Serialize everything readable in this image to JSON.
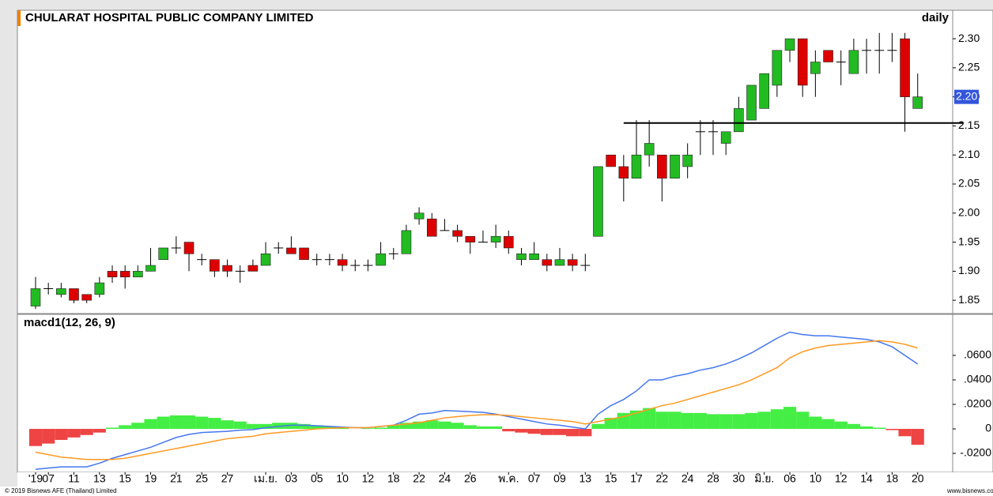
{
  "chart_data": [
    {
      "type": "candlestick",
      "title": "CHULARAT HOSPITAL PUBLIC COMPANY LIMITED",
      "subtitle": "daily",
      "categories": [
        "'19",
        "07",
        null,
        "11",
        null,
        "13",
        null,
        "15",
        null,
        "19",
        null,
        "21",
        null,
        "25",
        null,
        "27",
        null,
        null,
        "เม.ย.",
        null,
        "03",
        null,
        "05",
        null,
        "10",
        null,
        "12",
        null,
        "18",
        null,
        "22",
        null,
        "24",
        null,
        "26",
        null,
        null,
        "พ.ค.",
        null,
        "07",
        null,
        "09",
        null,
        "13",
        null,
        "15",
        null,
        "17",
        null,
        "22",
        null,
        "24",
        null,
        "28",
        null,
        "30",
        null,
        "มิ.ย.",
        null,
        "06",
        null,
        "10",
        null,
        "12",
        null,
        "14",
        null,
        "18",
        null,
        "20"
      ],
      "open": [
        1.84,
        1.87,
        1.86,
        1.87,
        1.86,
        1.86,
        1.9,
        1.9,
        1.89,
        1.9,
        1.92,
        1.94,
        1.95,
        1.92,
        1.92,
        1.91,
        1.9,
        1.91,
        1.91,
        1.94,
        1.94,
        1.94,
        1.92,
        1.92,
        1.92,
        1.91,
        1.91,
        1.91,
        1.93,
        1.93,
        1.99,
        1.99,
        1.97,
        1.97,
        1.96,
        1.95,
        1.95,
        1.96,
        1.92,
        1.92,
        1.92,
        1.91,
        1.92,
        1.91,
        1.96,
        2.1,
        2.08,
        2.06,
        2.1,
        2.1,
        2.06,
        2.08,
        2.14,
        2.14,
        2.12,
        2.14,
        2.16,
        2.18,
        2.22,
        2.28,
        2.3,
        2.24,
        2.28,
        2.26,
        2.24,
        2.28,
        2.28,
        2.28,
        2.3,
        2.18
      ],
      "high": [
        1.89,
        1.88,
        1.88,
        1.87,
        1.86,
        1.89,
        1.91,
        1.91,
        1.91,
        1.94,
        1.94,
        1.96,
        1.95,
        1.93,
        1.92,
        1.92,
        1.91,
        1.92,
        1.95,
        1.95,
        1.96,
        1.94,
        1.93,
        1.93,
        1.93,
        1.92,
        1.92,
        1.95,
        1.94,
        1.98,
        2.01,
        2.0,
        1.99,
        1.98,
        1.96,
        1.97,
        1.98,
        1.97,
        1.94,
        1.95,
        1.93,
        1.94,
        1.93,
        1.93,
        2.08,
        2.1,
        2.1,
        2.16,
        2.16,
        2.1,
        2.1,
        2.12,
        2.16,
        2.16,
        2.14,
        2.2,
        2.22,
        2.24,
        2.28,
        2.3,
        2.3,
        2.28,
        2.28,
        2.28,
        2.3,
        2.3,
        2.31,
        2.31,
        2.31,
        2.24
      ],
      "low": [
        1.835,
        1.86,
        1.855,
        1.845,
        1.845,
        1.855,
        1.88,
        1.87,
        1.89,
        1.9,
        1.92,
        1.93,
        1.9,
        1.91,
        1.89,
        1.89,
        1.88,
        1.9,
        1.91,
        1.93,
        1.93,
        1.92,
        1.91,
        1.91,
        1.9,
        1.9,
        1.9,
        1.91,
        1.92,
        1.93,
        1.98,
        1.96,
        1.97,
        1.95,
        1.93,
        1.95,
        1.94,
        1.93,
        1.91,
        1.92,
        1.9,
        1.91,
        1.9,
        1.9,
        1.96,
        2.08,
        2.02,
        2.06,
        2.08,
        2.02,
        2.06,
        2.06,
        2.1,
        2.1,
        2.1,
        2.14,
        2.16,
        2.18,
        2.2,
        2.26,
        2.2,
        2.2,
        2.26,
        2.22,
        2.24,
        2.24,
        2.24,
        2.26,
        2.14,
        2.18
      ],
      "close": [
        1.87,
        1.87,
        1.87,
        1.85,
        1.85,
        1.88,
        1.89,
        1.89,
        1.9,
        1.91,
        1.94,
        1.94,
        1.93,
        1.92,
        1.9,
        1.9,
        1.9,
        1.9,
        1.93,
        1.94,
        1.93,
        1.92,
        1.92,
        1.92,
        1.91,
        1.91,
        1.91,
        1.93,
        1.93,
        1.97,
        2.0,
        1.96,
        1.97,
        1.96,
        1.95,
        1.95,
        1.96,
        1.94,
        1.93,
        1.93,
        1.91,
        1.92,
        1.91,
        1.91,
        2.08,
        2.08,
        2.06,
        2.1,
        2.12,
        2.06,
        2.1,
        2.1,
        2.14,
        2.14,
        2.14,
        2.18,
        2.22,
        2.24,
        2.28,
        2.3,
        2.22,
        2.26,
        2.26,
        2.26,
        2.28,
        2.28,
        2.28,
        2.28,
        2.2,
        2.2
      ],
      "up_color": "#22bb22",
      "down_color": "#dd0000",
      "last_price": {
        "value": 2.2,
        "label": "2.20"
      },
      "support_line": 2.155,
      "ylim": [
        1.8285,
        2.349
      ],
      "yticks": [
        {
          "value": 1.85,
          "label": "1.85"
        },
        {
          "value": 1.9,
          "label": "1.90"
        },
        {
          "value": 1.95,
          "label": "1.95"
        },
        {
          "value": 2.0,
          "label": "2.00"
        },
        {
          "value": 2.05,
          "label": "2.05"
        },
        {
          "value": 2.1,
          "label": "2.10"
        },
        {
          "value": 2.15,
          "label": "2.15"
        },
        {
          "value": 2.2,
          "label": "2.20"
        },
        {
          "value": 2.25,
          "label": "2.25"
        },
        {
          "value": 2.3,
          "label": "2.30"
        }
      ]
    },
    {
      "type": "macd",
      "title": "macd1(12, 26, 9)",
      "series": [
        {
          "color": "#4477ee",
          "values": [
            -0.033,
            -0.032,
            -0.031,
            -0.031,
            -0.031,
            -0.028,
            -0.024,
            -0.021,
            -0.018,
            -0.015,
            -0.011,
            -0.007,
            -0.0045,
            -0.003,
            -0.0025,
            -0.002,
            -0.001,
            -0.0006,
            0.001,
            0.002,
            0.003,
            0.003,
            0.0025,
            0.002,
            0.0015,
            0.001,
            0.001,
            0.002,
            0.003,
            0.007,
            0.012,
            0.013,
            0.015,
            0.0145,
            0.014,
            0.0135,
            0.012,
            0.01,
            0.008,
            0.006,
            0.004,
            0.003,
            0.0015,
            0.0,
            0.012,
            0.019,
            0.024,
            0.031,
            0.04,
            0.04,
            0.043,
            0.045,
            0.048,
            0.05,
            0.053,
            0.057,
            0.062,
            0.068,
            0.074,
            0.079,
            0.077,
            0.076,
            0.076,
            0.075,
            0.074,
            0.073,
            0.071,
            0.067,
            0.06,
            0.053
          ]
        },
        {
          "color": "#ff9922",
          "values": [
            -0.019,
            -0.021,
            -0.023,
            -0.024,
            -0.025,
            -0.025,
            -0.025,
            -0.024,
            -0.022,
            -0.02,
            -0.018,
            -0.016,
            -0.014,
            -0.012,
            -0.01,
            -0.008,
            -0.007,
            -0.006,
            -0.004,
            -0.003,
            -0.002,
            -0.001,
            0.0,
            0.0005,
            0.001,
            0.001,
            0.001,
            0.002,
            0.003,
            0.004,
            0.005,
            0.007,
            0.009,
            0.01,
            0.011,
            0.0115,
            0.0115,
            0.011,
            0.01,
            0.009,
            0.008,
            0.007,
            0.006,
            0.004,
            0.006,
            0.008,
            0.01,
            0.013,
            0.016,
            0.019,
            0.021,
            0.024,
            0.027,
            0.03,
            0.033,
            0.036,
            0.04,
            0.045,
            0.05,
            0.058,
            0.063,
            0.066,
            0.068,
            0.069,
            0.07,
            0.071,
            0.072,
            0.071,
            0.069,
            0.066
          ]
        }
      ],
      "histogram": [
        -0.014,
        -0.012,
        -0.009,
        -0.007,
        -0.005,
        -0.003,
        0.001,
        0.003,
        0.005,
        0.008,
        0.01,
        0.011,
        0.011,
        0.01,
        0.009,
        0.007,
        0.006,
        0.004,
        0.004,
        0.005,
        0.005,
        0.004,
        0.003,
        0.002,
        0.001,
        0.0,
        0.0005,
        0.001,
        0.003,
        0.005,
        0.006,
        0.007,
        0.006,
        0.005,
        0.003,
        0.002,
        0.002,
        -0.002,
        -0.003,
        -0.004,
        -0.005,
        -0.005,
        -0.006,
        -0.006,
        0.004,
        0.009,
        0.013,
        0.015,
        0.017,
        0.014,
        0.014,
        0.013,
        0.013,
        0.012,
        0.012,
        0.012,
        0.013,
        0.014,
        0.016,
        0.018,
        0.014,
        0.01,
        0.008,
        0.006,
        0.004,
        0.002,
        0.001,
        -0.001,
        -0.006,
        -0.013
      ],
      "positive_color": "#44ee44",
      "negative_color": "#ee4444",
      "ylim": [
        -0.0348,
        0.0935
      ],
      "yticks": [
        {
          "value": -0.02,
          "label": "-.0200"
        },
        0,
        {
          "value": 0.02,
          "label": ".0200"
        },
        {
          "value": 0.04,
          "label": ".0400"
        },
        {
          "value": 0.06,
          "label": ".0600"
        }
      ]
    }
  ],
  "footer": {
    "copyright": "© 2019 Bisnews AFE (Thailand) Limited",
    "website": "www.bisnews.com"
  }
}
